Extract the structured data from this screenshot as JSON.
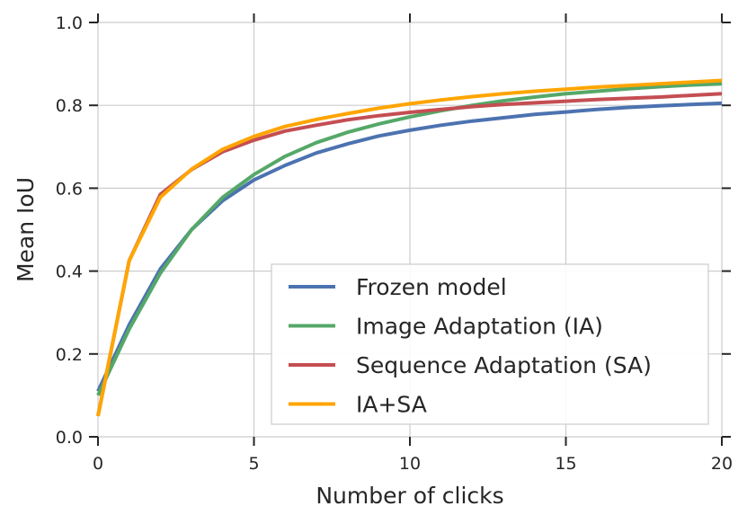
{
  "chart_data": {
    "type": "line",
    "title": "",
    "xlabel": "Number of clicks",
    "ylabel": "Mean IoU",
    "xlim": [
      0,
      20
    ],
    "ylim": [
      0,
      1
    ],
    "xticks": [
      0,
      5,
      10,
      15,
      20
    ],
    "xtick_labels": [
      "0",
      "5",
      "10",
      "15",
      "20"
    ],
    "yticks": [
      0,
      0.2,
      0.4,
      0.6,
      0.8,
      1.0
    ],
    "ytick_labels": [
      "0.0",
      "0.2",
      "0.4",
      "0.6",
      "0.8",
      "1.0"
    ],
    "grid": true,
    "legend_position": "lower-right",
    "x": [
      0,
      1,
      2,
      3,
      4,
      5,
      6,
      7,
      8,
      9,
      10,
      11,
      12,
      13,
      14,
      15,
      16,
      17,
      18,
      19,
      20
    ],
    "series": [
      {
        "name": "Frozen model",
        "color": "#4c72b0",
        "values": [
          0.11,
          0.27,
          0.405,
          0.5,
          0.57,
          0.62,
          0.655,
          0.685,
          0.707,
          0.726,
          0.74,
          0.752,
          0.762,
          0.77,
          0.778,
          0.784,
          0.79,
          0.795,
          0.799,
          0.802,
          0.805
        ]
      },
      {
        "name": "Image Adaptation (IA)",
        "color": "#55a868",
        "values": [
          0.1,
          0.26,
          0.395,
          0.5,
          0.578,
          0.633,
          0.677,
          0.71,
          0.735,
          0.755,
          0.772,
          0.787,
          0.8,
          0.811,
          0.82,
          0.828,
          0.834,
          0.84,
          0.845,
          0.849,
          0.852
        ]
      },
      {
        "name": "Sequence Adaptation (SA)",
        "color": "#c44e52",
        "values": [
          0.05,
          0.425,
          0.585,
          0.645,
          0.688,
          0.716,
          0.738,
          0.752,
          0.765,
          0.775,
          0.783,
          0.79,
          0.797,
          0.802,
          0.806,
          0.81,
          0.814,
          0.817,
          0.82,
          0.824,
          0.828
        ]
      },
      {
        "name": "IA+SA",
        "color": "#ffa500",
        "values": [
          0.05,
          0.425,
          0.578,
          0.646,
          0.694,
          0.725,
          0.749,
          0.766,
          0.78,
          0.793,
          0.804,
          0.813,
          0.821,
          0.828,
          0.834,
          0.839,
          0.844,
          0.848,
          0.852,
          0.856,
          0.86
        ]
      }
    ]
  }
}
